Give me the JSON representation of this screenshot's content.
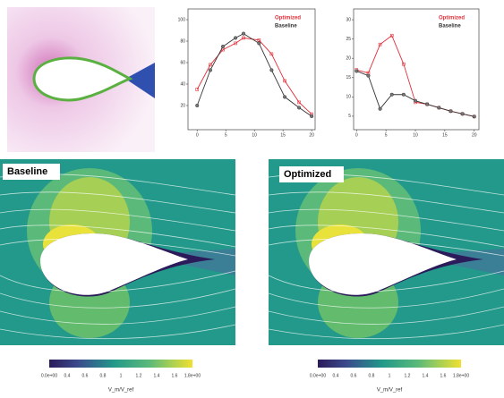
{
  "chart_data": [
    {
      "type": "line",
      "legend": "upper right",
      "xlim": [
        -1.6,
        20.6
      ],
      "ylim": [
        -2.5,
        110
      ],
      "xticks": [
        0,
        5,
        10,
        15,
        20
      ],
      "yticks": [
        20,
        40,
        60,
        80,
        100
      ],
      "x": [
        0,
        2.3,
        4.5,
        6.7,
        8.1,
        10.8,
        13,
        15.3,
        17.8,
        20
      ],
      "series": [
        {
          "name": "Optimized",
          "color": "#e0303a",
          "values": [
            35,
            58,
            72,
            78,
            83,
            81,
            68,
            43,
            23,
            12
          ]
        },
        {
          "name": "Baseline",
          "color": "#333333",
          "values": [
            20,
            53,
            75,
            83,
            87,
            78,
            53,
            28,
            18,
            10
          ]
        }
      ]
    },
    {
      "type": "line",
      "legend": "upper right",
      "xlim": [
        -0.5,
        20.8
      ],
      "ylim": [
        1.5,
        32.8
      ],
      "xticks": [
        0,
        5,
        10,
        15,
        20
      ],
      "yticks": [
        5,
        10,
        15,
        20,
        25,
        30
      ],
      "x": [
        0,
        2,
        4,
        6,
        8,
        10,
        12,
        14,
        16,
        18,
        20
      ],
      "series": [
        {
          "name": "Optimized",
          "color": "#e0303a",
          "values": [
            17,
            16.2,
            23.6,
            25.9,
            18.5,
            8.6,
            8.1,
            7.2,
            6.3,
            5.6,
            4.9
          ]
        },
        {
          "name": "Baseline",
          "color": "#333333",
          "values": [
            16.7,
            15.5,
            6.9,
            10.6,
            10.6,
            9.0,
            8.1,
            7.2,
            6.3,
            5.6,
            4.9
          ]
        }
      ]
    }
  ],
  "flow_panels": [
    {
      "label": "Baseline"
    },
    {
      "label": "Optimized"
    }
  ],
  "colorbar": {
    "ticks": [
      "0.0e+00",
      "0.4",
      "0.6",
      "0.8",
      "1",
      "1.2",
      "1.4",
      "1.6",
      "1.8e+00"
    ],
    "label": "V_m/V_ref"
  }
}
